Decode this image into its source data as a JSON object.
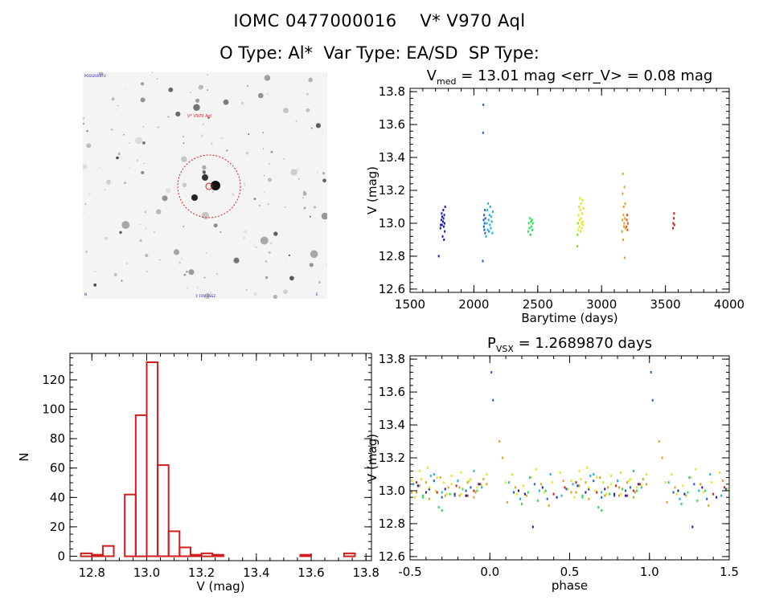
{
  "header": {
    "line1": "IOMC 0477000016    V* V970 Aql",
    "line2": "O Type: Al*  Var Type: EA/SD  SP Type:"
  },
  "image_panel": {
    "target_label": "V* V970 Aql",
    "corner_top_left": "POSS2UKSTU",
    "corner_bottom_center": "1' FOV  DSS2",
    "corner_bottom_left": "N",
    "corner_bottom_right": "E"
  },
  "chart_data": [
    {
      "type": "scatter",
      "name": "light-curve",
      "title_main": "V",
      "title_sub": "med",
      "title_rest": " = 13.01 mag <err_V> = 0.08 mag",
      "xlabel": "Barytime (days)",
      "ylabel": "V (mag)",
      "xlim": [
        1500,
        4000
      ],
      "ylim": [
        13.82,
        12.58
      ],
      "xticks": [
        1500,
        2000,
        2500,
        3000,
        3500,
        4000
      ],
      "yticks": [
        12.6,
        12.8,
        13.0,
        13.2,
        13.4,
        13.6,
        13.8
      ],
      "series": [
        {
          "name": "season-1",
          "color": "#1a1ab8",
          "points": [
            [
              1725,
              12.8
            ],
            [
              1738,
              12.97
            ],
            [
              1745,
              13.02
            ],
            [
              1750,
              12.99
            ],
            [
              1752,
              13.04
            ],
            [
              1755,
              12.92
            ],
            [
              1758,
              13.01
            ],
            [
              1760,
              13.08
            ],
            [
              1762,
              13.03
            ],
            [
              1764,
              12.98
            ],
            [
              1766,
              12.9
            ],
            [
              1768,
              13.05
            ],
            [
              1770,
              13.0
            ],
            [
              1772,
              12.95
            ],
            [
              1775,
              13.1
            ],
            [
              1740,
              12.99
            ],
            [
              1748,
              13.06
            ]
          ]
        },
        {
          "name": "season-2",
          "color": "#1a5fd6",
          "points": [
            [
              2070,
              12.77
            ],
            [
              2072,
              13.55
            ],
            [
              2074,
              13.72
            ],
            [
              2076,
              13.02
            ],
            [
              2078,
              12.98
            ],
            [
              2080,
              13.05
            ],
            [
              2082,
              12.96
            ],
            [
              2084,
              13.0
            ],
            [
              2086,
              13.08
            ],
            [
              2088,
              12.94
            ],
            [
              2090,
              13.03
            ]
          ]
        },
        {
          "name": "season-3",
          "color": "#19b5d6",
          "points": [
            [
              2095,
              12.92
            ],
            [
              2100,
              13.0
            ],
            [
              2105,
              13.08
            ],
            [
              2108,
              12.96
            ],
            [
              2112,
              13.12
            ],
            [
              2115,
              13.02
            ],
            [
              2118,
              12.95
            ],
            [
              2122,
              13.05
            ],
            [
              2125,
              12.99
            ],
            [
              2128,
              13.1
            ],
            [
              2132,
              12.97
            ],
            [
              2135,
              13.04
            ],
            [
              2140,
              13.01
            ],
            [
              2145,
              12.94
            ],
            [
              2148,
              13.07
            ]
          ]
        },
        {
          "name": "season-4",
          "color": "#22e04a",
          "points": [
            [
              2425,
              12.95
            ],
            [
              2430,
              13.0
            ],
            [
              2435,
              12.97
            ],
            [
              2440,
              13.03
            ],
            [
              2443,
              12.93
            ],
            [
              2447,
              13.01
            ],
            [
              2450,
              12.98
            ],
            [
              2455,
              13.02
            ],
            [
              2458,
              12.96
            ],
            [
              2462,
              13.0
            ]
          ]
        },
        {
          "name": "season-5",
          "color": "#7ee01e",
          "points": [
            [
              2810,
              12.86
            ],
            [
              2812,
              12.93
            ],
            [
              2815,
              13.0
            ]
          ]
        },
        {
          "name": "season-6",
          "color": "#dcea17",
          "points": [
            [
              2818,
              12.96
            ],
            [
              2820,
              13.05
            ],
            [
              2823,
              13.1
            ],
            [
              2826,
              12.98
            ],
            [
              2828,
              13.02
            ],
            [
              2830,
              13.15
            ],
            [
              2833,
              13.08
            ],
            [
              2835,
              12.95
            ],
            [
              2838,
              13.03
            ],
            [
              2840,
              13.12
            ],
            [
              2842,
              13.0
            ],
            [
              2845,
              12.97
            ],
            [
              2848,
              13.06
            ],
            [
              2850,
              13.14
            ],
            [
              2852,
              13.01
            ],
            [
              2855,
              12.99
            ],
            [
              2858,
              13.09
            ]
          ]
        },
        {
          "name": "season-7",
          "color": "#e0a01a",
          "points": [
            [
              3160,
              12.95
            ],
            [
              3163,
              13.02
            ],
            [
              3165,
              13.18
            ],
            [
              3167,
              13.3
            ],
            [
              3169,
              12.9
            ],
            [
              3171,
              13.05
            ],
            [
              3173,
              13.1
            ],
            [
              3175,
              12.98
            ],
            [
              3177,
              13.0
            ],
            [
              3179,
              13.22
            ],
            [
              3181,
              12.79
            ],
            [
              3183,
              13.03
            ],
            [
              3185,
              13.12
            ],
            [
              3187,
              12.97
            ]
          ]
        },
        {
          "name": "season-8",
          "color": "#e05020",
          "points": [
            [
              3195,
              12.98
            ],
            [
              3198,
              13.02
            ],
            [
              3200,
              13.05
            ],
            [
              3203,
              12.96
            ],
            [
              3205,
              13.0
            ]
          ]
        },
        {
          "name": "season-9",
          "color": "#d01c1c",
          "points": [
            [
              3560,
              12.97
            ],
            [
              3562,
              13.0
            ],
            [
              3565,
              13.03
            ],
            [
              3568,
              13.06
            ],
            [
              3570,
              12.99
            ]
          ]
        }
      ]
    },
    {
      "type": "bar",
      "name": "histogram",
      "xlabel": "V (mag)",
      "ylabel": "N",
      "xlim": [
        12.72,
        13.82
      ],
      "ylim": [
        -3,
        138
      ],
      "xticks": [
        12.8,
        13.0,
        13.2,
        13.4,
        13.6,
        13.8
      ],
      "yticks": [
        0,
        20,
        40,
        60,
        80,
        100,
        120
      ],
      "bin_width": 0.04,
      "bin_starts": [
        12.76,
        12.8,
        12.84,
        12.88,
        12.92,
        12.96,
        13.0,
        13.04,
        13.08,
        13.12,
        13.16,
        13.2,
        13.24,
        13.28,
        13.32,
        13.36,
        13.4,
        13.44,
        13.48,
        13.52,
        13.56,
        13.6,
        13.64,
        13.68,
        13.72
      ],
      "counts": [
        2,
        1,
        7,
        0,
        42,
        96,
        132,
        62,
        17,
        6,
        1,
        2,
        1,
        0,
        0,
        0,
        0,
        0,
        0,
        0,
        1,
        0,
        0,
        0,
        2
      ]
    },
    {
      "type": "scatter",
      "name": "phased-light-curve",
      "title_main": "P",
      "title_sub": "VSX",
      "title_rest": " = 1.2689870 days",
      "xlabel": "phase",
      "ylabel": "V (mag)",
      "xlim": [
        -0.5,
        1.5
      ],
      "ylim": [
        13.82,
        12.58
      ],
      "xticks": [
        -0.5,
        0.0,
        0.5,
        1.0,
        1.5
      ],
      "xticklabels": [
        "-0.5",
        "0.0",
        "0.5",
        "1.0",
        "1.5"
      ],
      "yticks": [
        12.6,
        12.8,
        13.0,
        13.2,
        13.4,
        13.6,
        13.8
      ],
      "series": [
        {
          "name": "season-1",
          "color": "#1a1ab8",
          "points": [
            [
              0.18,
              13.0
            ],
            [
              0.22,
              12.98
            ],
            [
              0.27,
              12.78
            ],
            [
              0.33,
              13.02
            ],
            [
              0.42,
              12.96
            ],
            [
              0.55,
              13.03
            ],
            [
              0.6,
              12.99
            ],
            [
              0.72,
              13.01
            ],
            [
              0.85,
              12.97
            ],
            [
              0.93,
              13.04
            ],
            [
              -0.38,
              13.01
            ],
            [
              -0.22,
              12.98
            ]
          ]
        },
        {
          "name": "season-2",
          "color": "#1a5fd6",
          "points": [
            [
              0.02,
              13.55
            ],
            [
              0.01,
              13.72
            ],
            [
              0.15,
              12.99
            ],
            [
              0.28,
              13.04
            ],
            [
              0.36,
              12.95
            ],
            [
              0.48,
              13.01
            ],
            [
              0.65,
              13.06
            ],
            [
              0.78,
              12.97
            ],
            [
              0.88,
              13.02
            ],
            [
              -0.45,
              13.03
            ],
            [
              -0.3,
              12.96
            ],
            [
              -0.15,
              13.0
            ]
          ]
        },
        {
          "name": "season-3",
          "color": "#19b5d6",
          "points": [
            [
              0.12,
              13.05
            ],
            [
              0.19,
              12.95
            ],
            [
              0.25,
              13.08
            ],
            [
              0.31,
              13.0
            ],
            [
              0.38,
              13.1
            ],
            [
              0.45,
              12.97
            ],
            [
              0.52,
              13.04
            ],
            [
              0.63,
              13.09
            ],
            [
              0.7,
              12.99
            ],
            [
              0.8,
              13.06
            ],
            [
              0.9,
              13.12
            ],
            [
              0.95,
              13.02
            ],
            [
              -0.2,
              13.06
            ],
            [
              -0.35,
              13.1
            ]
          ]
        },
        {
          "name": "season-4",
          "color": "#22e04a",
          "points": [
            [
              0.2,
              12.92
            ],
            [
              0.24,
              12.99
            ],
            [
              0.3,
              12.94
            ],
            [
              0.35,
              13.0
            ],
            [
              0.58,
              12.96
            ],
            [
              0.68,
              12.9
            ],
            [
              0.75,
              12.98
            ],
            [
              0.83,
              13.01
            ],
            [
              -0.3,
              12.88
            ],
            [
              -0.42,
              12.97
            ],
            [
              -0.08,
              13.0
            ]
          ]
        },
        {
          "name": "season-6",
          "color": "#dcea17",
          "points": [
            [
              0.1,
              13.05
            ],
            [
              0.14,
              13.1
            ],
            [
              0.17,
              12.98
            ],
            [
              0.21,
              13.03
            ],
            [
              0.26,
              13.08
            ],
            [
              0.29,
              13.13
            ],
            [
              0.34,
              12.99
            ],
            [
              0.39,
              13.05
            ],
            [
              0.44,
              13.11
            ],
            [
              0.49,
              13.01
            ],
            [
              0.53,
              12.96
            ],
            [
              0.57,
              13.07
            ],
            [
              0.61,
              13.14
            ],
            [
              0.66,
              13.0
            ],
            [
              0.71,
              13.05
            ],
            [
              0.76,
              13.09
            ],
            [
              0.82,
              12.98
            ],
            [
              0.87,
              13.06
            ],
            [
              0.92,
              13.02
            ],
            [
              0.98,
              13.1
            ],
            [
              -0.49,
              13.06
            ],
            [
              -0.44,
              13.12
            ],
            [
              -0.38,
              13.02
            ],
            [
              -0.33,
              13.08
            ],
            [
              -0.27,
              12.98
            ],
            [
              -0.24,
              13.04
            ],
            [
              -0.18,
              13.11
            ],
            [
              -0.12,
              13.07
            ],
            [
              -0.05,
              13.03
            ]
          ]
        },
        {
          "name": "season-7",
          "color": "#e0a01a",
          "points": [
            [
              0.06,
              13.3
            ],
            [
              0.08,
              13.2
            ],
            [
              0.11,
              12.93
            ],
            [
              0.16,
              13.02
            ],
            [
              0.23,
              12.97
            ],
            [
              0.32,
              13.04
            ],
            [
              0.37,
              12.91
            ],
            [
              0.46,
              13.06
            ],
            [
              0.51,
              12.99
            ],
            [
              0.56,
              13.03
            ],
            [
              0.62,
              12.95
            ],
            [
              0.69,
              13.08
            ],
            [
              0.74,
              13.02
            ],
            [
              0.81,
              12.97
            ],
            [
              0.86,
              13.05
            ],
            [
              0.91,
              12.99
            ],
            [
              0.96,
              13.07
            ],
            [
              -0.46,
              12.99
            ],
            [
              -0.4,
              13.05
            ],
            [
              -0.28,
              12.97
            ],
            [
              -0.19,
              13.02
            ],
            [
              -0.1,
              12.96
            ],
            [
              -0.02,
              13.04
            ]
          ]
        },
        {
          "name": "season-9",
          "color": "#d01c1c",
          "points": [
            [
              0.4,
              12.98
            ],
            [
              0.47,
              13.02
            ],
            [
              0.54,
              13.05
            ],
            [
              0.67,
              12.99
            ],
            [
              0.79,
              13.03
            ],
            [
              -0.1,
              13.0
            ],
            [
              -0.06,
              13.04
            ],
            [
              -0.14,
              12.97
            ]
          ]
        }
      ]
    }
  ]
}
